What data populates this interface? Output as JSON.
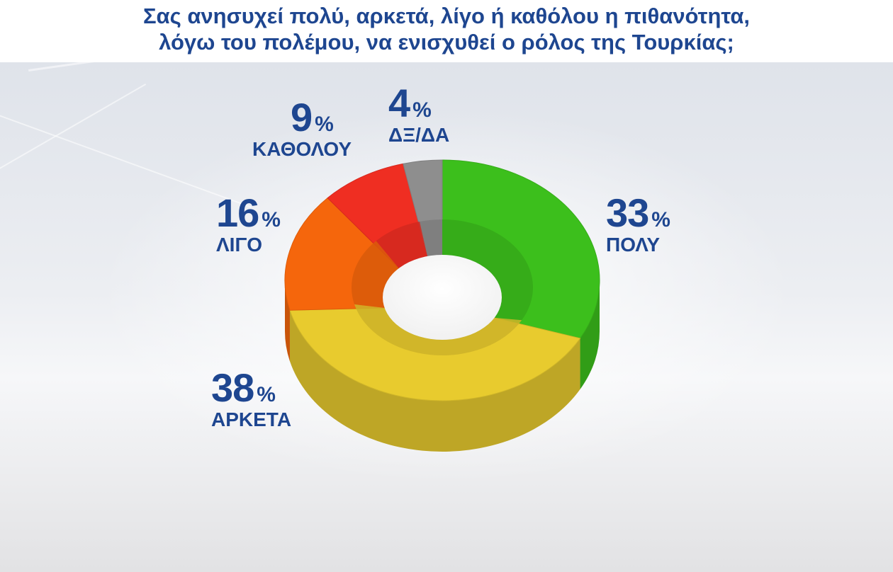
{
  "chart_data": {
    "type": "pie",
    "title": [
      "Σας ανησυχεί πολύ, αρκετά, λίγο ή καθόλου η πιθανότητα,",
      "λόγω του πολέμου, να ενισχυθεί ο ρόλος της Τουρκίας;"
    ],
    "donut": true,
    "slices": [
      {
        "label": "ΠΟΛΥ",
        "value": 33,
        "value_text": "33",
        "unit": "%",
        "color": "#3cbf1c"
      },
      {
        "label": "ΑΡΚΕΤΑ",
        "value": 38,
        "value_text": "38",
        "unit": "%",
        "color": "#e8cb2e"
      },
      {
        "label": "ΛΙΓΟ",
        "value": 16,
        "value_text": "16",
        "unit": "%",
        "color": "#f5660c"
      },
      {
        "label": "ΚΑΘΟΛΟΥ",
        "value": 9,
        "value_text": "9",
        "unit": "%",
        "color": "#ef2e22"
      },
      {
        "label": "ΔΞ/ΔΑ",
        "value": 4,
        "value_text": "4",
        "unit": "%",
        "color": "#8e8e8e"
      }
    ]
  }
}
